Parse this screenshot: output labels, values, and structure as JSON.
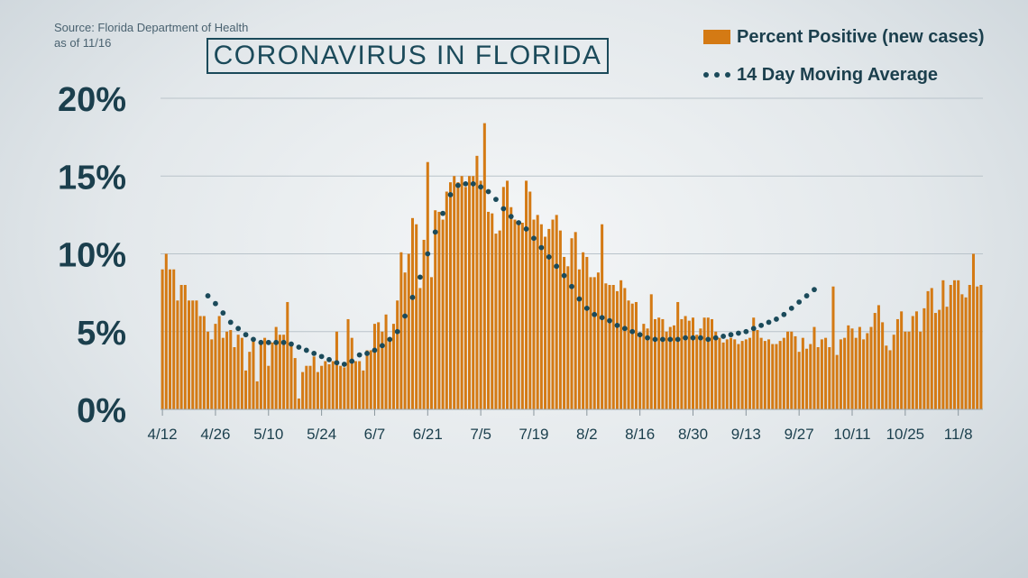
{
  "header": {
    "source_line1": "Source: Florida Department of Health",
    "source_line2": "as of 11/16",
    "title": "CORONAVIRUS IN FLORIDA"
  },
  "legend": {
    "bars_label": "Percent Positive (new cases)",
    "line_label": "14 Day Moving Average",
    "placement": "top-right"
  },
  "colors": {
    "bars": "#d47a14",
    "moving_average": "#1b4a5a",
    "axis_text": "#1b3f4d",
    "grid": "#b9c3ca"
  },
  "chart_data": {
    "type": "bar",
    "title": "CORONAVIRUS IN FLORIDA",
    "xlabel": "",
    "ylabel": "",
    "grid": true,
    "ylim": [
      0,
      20
    ],
    "yticks": [
      0,
      5,
      10,
      15,
      20
    ],
    "ytick_labels": [
      "0%",
      "5%",
      "10%",
      "15%",
      "20%"
    ],
    "start_date": "4/12",
    "xtick_labels": [
      "4/12",
      "4/26",
      "5/10",
      "5/24",
      "6/7",
      "6/21",
      "7/5",
      "7/19",
      "8/2",
      "8/16",
      "8/30",
      "9/13",
      "9/27",
      "10/11",
      "10/25",
      "11/8"
    ],
    "series": [
      {
        "name": "Percent Positive (new cases)",
        "type": "bar",
        "values": [
          9.0,
          10.0,
          9.0,
          9.0,
          7.0,
          8.0,
          8.0,
          7.0,
          7.0,
          7.0,
          6.0,
          6.0,
          5.0,
          4.5,
          5.5,
          6.0,
          4.6,
          5.0,
          5.1,
          4.0,
          4.8,
          4.6,
          2.5,
          3.7,
          4.6,
          1.8,
          4.4,
          4.6,
          2.8,
          4.3,
          5.3,
          4.8,
          4.8,
          6.9,
          4.2,
          3.3,
          0.7,
          2.4,
          2.8,
          2.8,
          3.4,
          2.4,
          2.8,
          3.1,
          2.9,
          3.1,
          5.0,
          2.8,
          2.7,
          5.8,
          4.6,
          3.1,
          3.1,
          2.5,
          3.8,
          3.8,
          5.5,
          5.6,
          5.0,
          6.1,
          4.5,
          5.5,
          7.0,
          10.1,
          8.8,
          10.0,
          12.3,
          11.9,
          7.8,
          10.9,
          15.9,
          8.5,
          12.8,
          12.7,
          12.2,
          14.0,
          14.6,
          15.0,
          14.6,
          15.0,
          14.3,
          15.0,
          15.0,
          16.3,
          14.7,
          18.4,
          12.7,
          12.6,
          11.3,
          11.5,
          14.3,
          14.7,
          13.0,
          12.2,
          11.9,
          12.0,
          14.7,
          14.0,
          12.2,
          12.5,
          11.9,
          11.1,
          11.6,
          12.2,
          12.5,
          11.5,
          9.8,
          9.2,
          11.0,
          11.4,
          9.0,
          10.1,
          9.8,
          8.5,
          8.5,
          8.8,
          11.9,
          8.1,
          8.0,
          8.0,
          7.6,
          8.3,
          7.8,
          7.0,
          6.8,
          6.9,
          4.8,
          5.5,
          5.2,
          7.4,
          5.8,
          5.9,
          5.8,
          5.0,
          5.3,
          5.4,
          6.9,
          5.8,
          6.0,
          5.7,
          5.9,
          4.8,
          5.2,
          5.9,
          5.9,
          5.8,
          5.0,
          4.6,
          4.3,
          4.5,
          4.6,
          4.5,
          4.2,
          4.4,
          4.5,
          4.6,
          5.9,
          5.1,
          4.6,
          4.4,
          4.5,
          4.2,
          4.2,
          4.4,
          4.6,
          5.0,
          5.0,
          4.7,
          3.7,
          4.6,
          3.9,
          4.2,
          5.3,
          4.0,
          4.5,
          4.6,
          4.0,
          7.9,
          3.5,
          4.5,
          4.6,
          5.4,
          5.2,
          4.6,
          5.3,
          4.5,
          4.9,
          5.3,
          6.2,
          6.7,
          5.6,
          4.1,
          3.8,
          4.8,
          5.8,
          6.3,
          5.0,
          5.0,
          6.0,
          6.3,
          5.0,
          6.5,
          7.6,
          7.8,
          6.2,
          6.4,
          8.3,
          6.6,
          8.0,
          8.3,
          8.3,
          7.4,
          7.2,
          8.0,
          10.0,
          7.9,
          8.0
        ]
      },
      {
        "name": "14 Day Moving Average",
        "type": "line",
        "start_date": "4/24",
        "values": [
          7.3,
          7.1,
          6.8,
          6.5,
          6.2,
          5.9,
          5.6,
          5.4,
          5.2,
          5.0,
          4.8,
          4.6,
          4.5,
          4.4,
          4.3,
          4.3,
          4.3,
          4.3,
          4.3,
          4.3,
          4.3,
          4.3,
          4.2,
          4.1,
          4.0,
          3.9,
          3.8,
          3.7,
          3.6,
          3.5,
          3.4,
          3.3,
          3.2,
          3.1,
          3.0,
          2.9,
          2.9,
          3.0,
          3.1,
          3.3,
          3.5,
          3.6,
          3.6,
          3.7,
          3.8,
          3.9,
          4.1,
          4.3,
          4.5,
          4.7,
          5.0,
          5.5,
          6.0,
          6.6,
          7.2,
          7.8,
          8.5,
          9.2,
          10.0,
          10.8,
          11.4,
          12.0,
          12.6,
          13.2,
          13.8,
          14.2,
          14.4,
          14.5,
          14.5,
          14.5,
          14.5,
          14.4,
          14.3,
          14.2,
          14.0,
          13.8,
          13.5,
          13.2,
          12.9,
          12.6,
          12.4,
          12.2,
          12.0,
          11.8,
          11.6,
          11.3,
          11.0,
          10.7,
          10.4,
          10.1,
          9.8,
          9.5,
          9.2,
          8.9,
          8.6,
          8.3,
          7.9,
          7.5,
          7.1,
          6.8,
          6.5,
          6.3,
          6.1,
          6.0,
          5.9,
          5.8,
          5.7,
          5.6,
          5.4,
          5.3,
          5.2,
          5.1,
          5.0,
          4.9,
          4.8,
          4.7,
          4.6,
          4.6,
          4.5,
          4.5,
          4.5,
          4.5,
          4.5,
          4.5,
          4.5,
          4.6,
          4.6,
          4.6,
          4.6,
          4.6,
          4.6,
          4.6,
          4.5,
          4.5,
          4.6,
          4.6,
          4.7,
          4.7,
          4.8,
          4.8,
          4.9,
          4.9,
          5.0,
          5.1,
          5.2,
          5.3,
          5.4,
          5.5,
          5.6,
          5.7,
          5.8,
          5.9,
          6.1,
          6.3,
          6.5,
          6.7,
          6.9,
          7.1,
          7.3,
          7.5,
          7.7
        ]
      }
    ]
  }
}
